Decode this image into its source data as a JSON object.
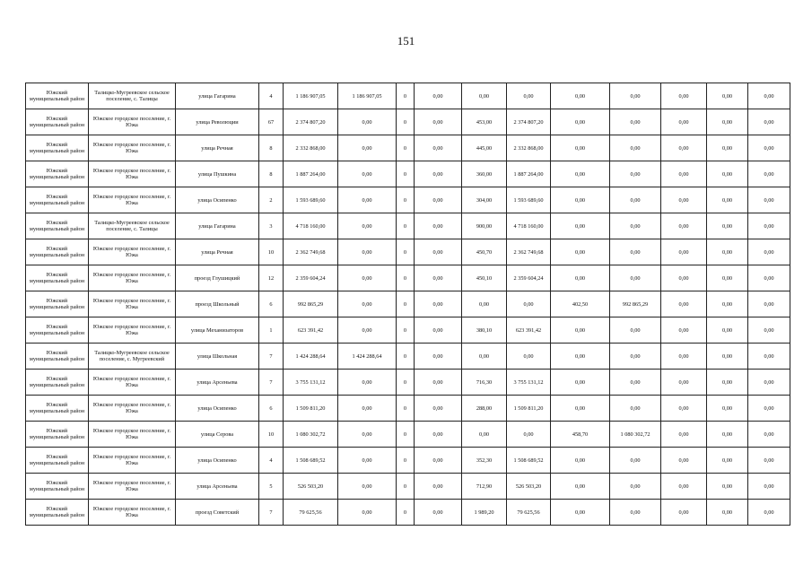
{
  "page_number": "151",
  "rows": [
    [
      "Южский муниципальный район",
      "Талицко-Мугреевское сельское поселение, с. Талицы",
      "улица Гагарина",
      "4",
      "1 186 907,05",
      "1 186 907,05",
      "0",
      "0,00",
      "0,00",
      "0,00",
      "0,00",
      "0,00",
      "0,00",
      "0,00",
      "0,00"
    ],
    [
      "Южский муниципальный район",
      "Южское городское поселение, г. Южа",
      "улица Революции",
      "67",
      "2 374 807,20",
      "0,00",
      "0",
      "0,00",
      "453,00",
      "2 374 807,20",
      "0,00",
      "0,00",
      "0,00",
      "0,00",
      "0,00"
    ],
    [
      "Южский муниципальный район",
      "Южское городское поселение, г. Южа",
      "улица Речная",
      "8",
      "2 332 868,00",
      "0,00",
      "0",
      "0,00",
      "445,00",
      "2 332 868,00",
      "0,00",
      "0,00",
      "0,00",
      "0,00",
      "0,00"
    ],
    [
      "Южский муниципальный район",
      "Южское городское поселение, г. Южа",
      "улица Пушкина",
      "8",
      "1 887 264,00",
      "0,00",
      "0",
      "0,00",
      "360,00",
      "1 887 264,00",
      "0,00",
      "0,00",
      "0,00",
      "0,00",
      "0,00"
    ],
    [
      "Южский муниципальный район",
      "Южское городское поселение, г. Южа",
      "улица Осипенко",
      "2",
      "1 593 689,60",
      "0,00",
      "0",
      "0,00",
      "304,00",
      "1 593 689,60",
      "0,00",
      "0,00",
      "0,00",
      "0,00",
      "0,00"
    ],
    [
      "Южский муниципальный район",
      "Талицко-Мугреевское сельское поселение, с. Талицы",
      "улица Гагарина",
      "3",
      "4 718 160,00",
      "0,00",
      "0",
      "0,00",
      "900,00",
      "4 718 160,00",
      "0,00",
      "0,00",
      "0,00",
      "0,00",
      "0,00"
    ],
    [
      "Южский муниципальный район",
      "Южское городское поселение, г. Южа",
      "улица Речная",
      "10",
      "2 362 749,68",
      "0,00",
      "0",
      "0,00",
      "450,70",
      "2 362 749,68",
      "0,00",
      "0,00",
      "0,00",
      "0,00",
      "0,00"
    ],
    [
      "Южский муниципальный район",
      "Южское городское поселение, г. Южа",
      "проезд Глушицкий",
      "12",
      "2 359 604,24",
      "0,00",
      "0",
      "0,00",
      "450,10",
      "2 359 604,24",
      "0,00",
      "0,00",
      "0,00",
      "0,00",
      "0,00"
    ],
    [
      "Южский муниципальный район",
      "Южское городское поселение, г. Южа",
      "проезд Школьный",
      "6",
      "992 865,29",
      "0,00",
      "0",
      "0,00",
      "0,00",
      "0,00",
      "402,50",
      "992 865,29",
      "0,00",
      "0,00",
      "0,00"
    ],
    [
      "Южский муниципальный район",
      "Южское городское поселение, г. Южа",
      "улица Механизаторов",
      "1",
      "623 391,42",
      "0,00",
      "0",
      "0,00",
      "380,10",
      "623 391,42",
      "0,00",
      "0,00",
      "0,00",
      "0,00",
      "0,00"
    ],
    [
      "Южский муниципальный район",
      "Талицко-Мугреевское сельское поселение, с. Мугреевский",
      "улица Школьная",
      "7",
      "1 424 288,64",
      "1 424 288,64",
      "0",
      "0,00",
      "0,00",
      "0,00",
      "0,00",
      "0,00",
      "0,00",
      "0,00",
      "0,00"
    ],
    [
      "Южский муниципальный район",
      "Южское городское поселение, г. Южа",
      "улица Арсеньева",
      "7",
      "3 755 131,12",
      "0,00",
      "0",
      "0,00",
      "716,30",
      "3 755 131,12",
      "0,00",
      "0,00",
      "0,00",
      "0,00",
      "0,00"
    ],
    [
      "Южский муниципальный район",
      "Южское городское поселение, г. Южа",
      "улица Осипенко",
      "6",
      "1 509 811,20",
      "0,00",
      "0",
      "0,00",
      "288,00",
      "1 509 811,20",
      "0,00",
      "0,00",
      "0,00",
      "0,00",
      "0,00"
    ],
    [
      "Южский муниципальный район",
      "Южское городское поселение, г. Южа",
      "улица Серова",
      "10",
      "1 080 302,72",
      "0,00",
      "0",
      "0,00",
      "0,00",
      "0,00",
      "458,70",
      "1 080 302,72",
      "0,00",
      "0,00",
      "0,00"
    ],
    [
      "Южский муниципальный район",
      "Южское городское поселение, г. Южа",
      "улица Осипенко",
      "4",
      "1 508 689,52",
      "0,00",
      "0",
      "0,00",
      "352,30",
      "1 508 689,52",
      "0,00",
      "0,00",
      "0,00",
      "0,00",
      "0,00"
    ],
    [
      "Южский муниципальный район",
      "Южское городское поселение, г. Южа",
      "улица Арсеньева",
      "5",
      "526 503,20",
      "0,00",
      "0",
      "0,00",
      "712,90",
      "526 503,20",
      "0,00",
      "0,00",
      "0,00",
      "0,00",
      "0,00"
    ],
    [
      "Южский муниципальный район",
      "Южское городское поселение, г. Южа",
      "проезд Советский",
      "7",
      "79 625,56",
      "0,00",
      "0",
      "0,00",
      "1 989,20",
      "79 625,56",
      "0,00",
      "0,00",
      "0,00",
      "0,00",
      "0,00"
    ]
  ]
}
